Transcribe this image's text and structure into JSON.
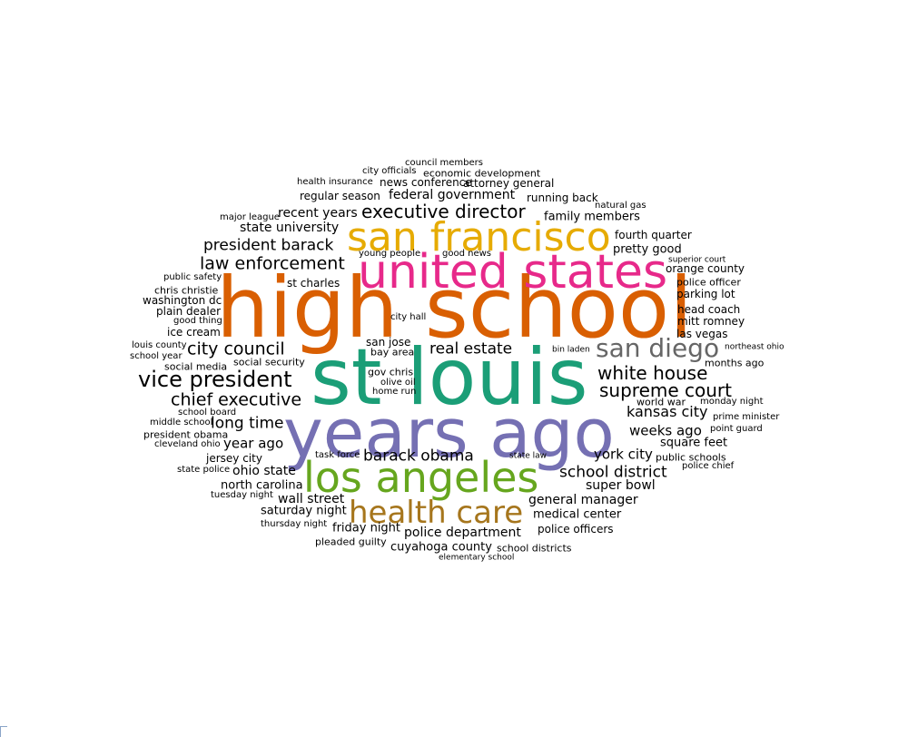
{
  "colors": {
    "default": "#000000",
    "orange": "#d95f02",
    "gold": "#e6ab02",
    "pink": "#e7298a",
    "teal": "#1b9e77",
    "purple": "#7570b3",
    "green": "#66a61e",
    "brown": "#a6761d",
    "gray": "#666666"
  },
  "words": [
    {
      "text": "high school",
      "color": "orange"
    },
    {
      "text": "st louis",
      "color": "teal"
    },
    {
      "text": "years ago",
      "color": "purple"
    },
    {
      "text": "united states",
      "color": "pink"
    },
    {
      "text": "san francisco",
      "color": "gold"
    },
    {
      "text": "los angeles",
      "color": "green"
    },
    {
      "text": "health care",
      "color": "brown"
    },
    {
      "text": "san diego",
      "color": "gray"
    },
    {
      "text": "vice president",
      "color": "default"
    },
    {
      "text": "executive director",
      "color": "default"
    },
    {
      "text": "law enforcement",
      "color": "default"
    },
    {
      "text": "city council",
      "color": "default"
    },
    {
      "text": "chief executive",
      "color": "default"
    },
    {
      "text": "white house",
      "color": "default"
    },
    {
      "text": "supreme court",
      "color": "default"
    },
    {
      "text": "president barack",
      "color": "default"
    },
    {
      "text": "real estate",
      "color": "default"
    },
    {
      "text": "long time",
      "color": "default"
    },
    {
      "text": "barack obama",
      "color": "default"
    },
    {
      "text": "school district",
      "color": "default"
    },
    {
      "text": "kansas city",
      "color": "default"
    },
    {
      "text": "weeks ago",
      "color": "default"
    },
    {
      "text": "york city",
      "color": "default"
    },
    {
      "text": "year ago",
      "color": "default"
    },
    {
      "text": "ohio state",
      "color": "default"
    },
    {
      "text": "super bowl",
      "color": "default"
    },
    {
      "text": "general manager",
      "color": "default"
    },
    {
      "text": "police department",
      "color": "default"
    },
    {
      "text": "wall street",
      "color": "default"
    },
    {
      "text": "federal government",
      "color": "default"
    },
    {
      "text": "recent years",
      "color": "default"
    },
    {
      "text": "state university",
      "color": "default"
    },
    {
      "text": "family members",
      "color": "default"
    },
    {
      "text": "medical center",
      "color": "default"
    },
    {
      "text": "pretty good",
      "color": "default"
    },
    {
      "text": "cuyahoga county",
      "color": "default"
    },
    {
      "text": "north carolina",
      "color": "default"
    },
    {
      "text": "saturday night",
      "color": "default"
    },
    {
      "text": "friday night",
      "color": "default"
    },
    {
      "text": "square feet",
      "color": "default"
    },
    {
      "text": "jersey city",
      "color": "default"
    },
    {
      "text": "st charles",
      "color": "default"
    },
    {
      "text": "news conference",
      "color": "default"
    },
    {
      "text": "attorney general",
      "color": "default"
    },
    {
      "text": "regular season",
      "color": "default"
    },
    {
      "text": "running back",
      "color": "default"
    },
    {
      "text": "fourth quarter",
      "color": "default"
    },
    {
      "text": "orange county",
      "color": "default"
    },
    {
      "text": "parking lot",
      "color": "default"
    },
    {
      "text": "head coach",
      "color": "default"
    },
    {
      "text": "mitt romney",
      "color": "default"
    },
    {
      "text": "las vegas",
      "color": "default"
    },
    {
      "text": "washington dc",
      "color": "default"
    },
    {
      "text": "plain dealer",
      "color": "default"
    },
    {
      "text": "ice cream",
      "color": "default"
    },
    {
      "text": "police officers",
      "color": "default"
    },
    {
      "text": "economic development",
      "color": "default"
    },
    {
      "text": "san jose",
      "color": "default"
    },
    {
      "text": "bay area",
      "color": "default"
    },
    {
      "text": "gov chris",
      "color": "default"
    },
    {
      "text": "social media",
      "color": "default"
    },
    {
      "text": "social security",
      "color": "default"
    },
    {
      "text": "president obama",
      "color": "default"
    },
    {
      "text": "public schools",
      "color": "default"
    },
    {
      "text": "police officer",
      "color": "default"
    },
    {
      "text": "chris christie",
      "color": "default"
    },
    {
      "text": "months ago",
      "color": "default"
    },
    {
      "text": "school districts",
      "color": "default"
    },
    {
      "text": "pleaded guilty",
      "color": "default"
    },
    {
      "text": "health insurance",
      "color": "default"
    },
    {
      "text": "city officials",
      "color": "default"
    },
    {
      "text": "world war",
      "color": "default"
    },
    {
      "text": "monday night",
      "color": "default"
    },
    {
      "text": "olive oil",
      "color": "default"
    },
    {
      "text": "public safety",
      "color": "default"
    },
    {
      "text": "thursday night",
      "color": "default"
    },
    {
      "text": "tuesday night",
      "color": "default"
    },
    {
      "text": "school board",
      "color": "default"
    },
    {
      "text": "cleveland ohio",
      "color": "default"
    },
    {
      "text": "home run",
      "color": "default"
    },
    {
      "text": "city hall",
      "color": "default"
    },
    {
      "text": "good thing",
      "color": "default"
    },
    {
      "text": "louis county",
      "color": "default"
    },
    {
      "text": "school year",
      "color": "default"
    },
    {
      "text": "middle school",
      "color": "default"
    },
    {
      "text": "state police",
      "color": "default"
    },
    {
      "text": "council members",
      "color": "default"
    },
    {
      "text": "natural gas",
      "color": "default"
    },
    {
      "text": "major league",
      "color": "default"
    },
    {
      "text": "young people",
      "color": "default"
    },
    {
      "text": "good news",
      "color": "default"
    },
    {
      "text": "superior court",
      "color": "default"
    },
    {
      "text": "bin laden",
      "color": "default"
    },
    {
      "text": "northeast ohio",
      "color": "default"
    },
    {
      "text": "prime minister",
      "color": "default"
    },
    {
      "text": "point guard",
      "color": "default"
    },
    {
      "text": "police chief",
      "color": "default"
    },
    {
      "text": "task force",
      "color": "default"
    },
    {
      "text": "state law",
      "color": "default"
    },
    {
      "text": "elementary school",
      "color": "default"
    }
  ]
}
